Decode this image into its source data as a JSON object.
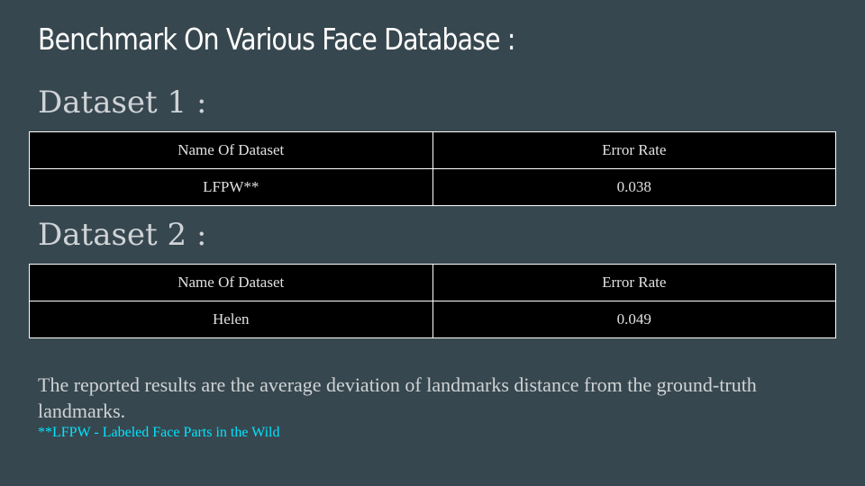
{
  "slide": {
    "title": "Benchmark On Various Face Database :",
    "sections": [
      {
        "heading": "Dataset 1 :",
        "table": {
          "headers": [
            "Name Of Dataset",
            "Error Rate"
          ],
          "rows": [
            [
              "LFPW**",
              "0.038"
            ]
          ]
        }
      },
      {
        "heading": "Dataset 2 :",
        "table": {
          "headers": [
            "Name Of Dataset",
            "Error Rate"
          ],
          "rows": [
            [
              "Helen",
              "0.049"
            ]
          ]
        }
      }
    ],
    "note": "The reported results are the average deviation of landmarks distance from the ground-truth landmarks.",
    "footnote": "**LFPW - Labeled Face Parts in the Wild"
  },
  "colors": {
    "background": "#37474f",
    "title": "#ffffff",
    "heading": "#cfd3d6",
    "table_background": "#000000",
    "table_border": "#ffffff",
    "footnote": "#00e5ff"
  }
}
